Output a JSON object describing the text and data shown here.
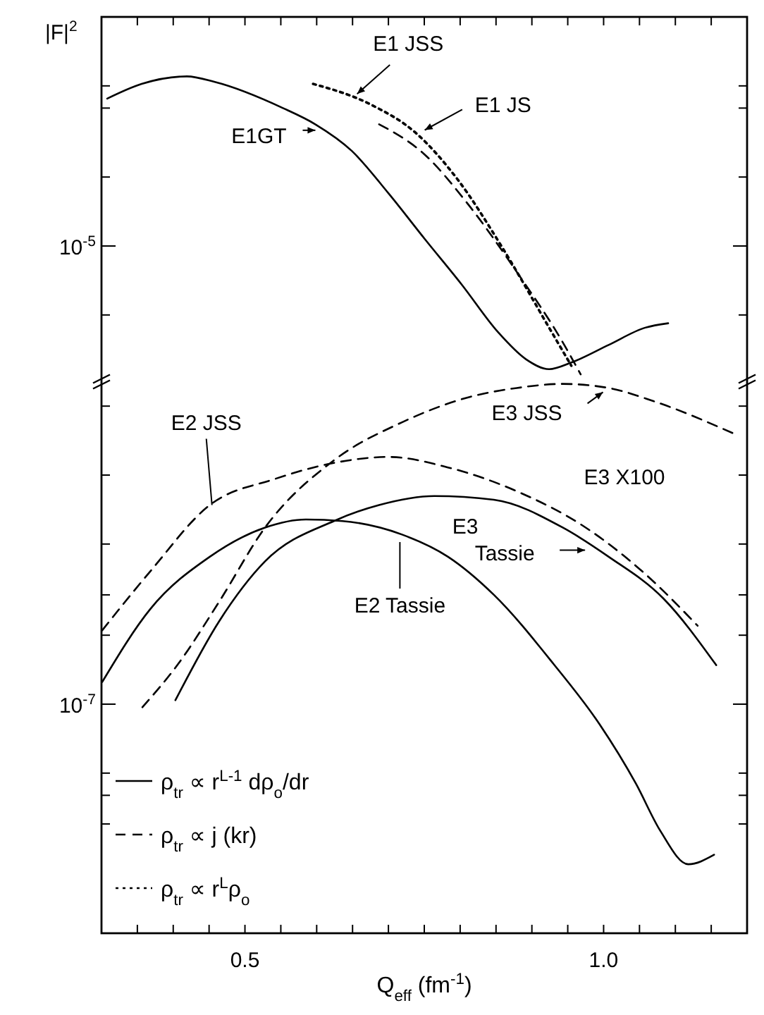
{
  "chart_data": {
    "type": "line",
    "xlabel": "Q$_{eff}$ (fm$^{-1}$)",
    "ylabel": "|F|$^{2}$",
    "log": "y",
    "xlim": [
      0.3,
      1.2
    ],
    "xticks": [
      {
        "value": 0.35,
        "label": null
      },
      {
        "value": 0.4,
        "label": null
      },
      {
        "value": 0.45,
        "label": null
      },
      0.5,
      {
        "value": 0.55,
        "label": null
      },
      {
        "value": 0.6,
        "label": null
      },
      {
        "value": 0.65,
        "label": null
      },
      {
        "value": 0.7,
        "label": null
      },
      {
        "value": 0.75,
        "label": null
      },
      {
        "value": 0.8,
        "label": null
      },
      {
        "value": 0.85,
        "label": null
      },
      {
        "value": 0.9,
        "label": null
      },
      {
        "value": 0.95,
        "label": null
      },
      {
        "value": 1,
        "label": "1.0"
      },
      {
        "value": 1.05,
        "label": null
      },
      {
        "value": 1.1,
        "label": null
      },
      {
        "value": 1.15,
        "label": null
      }
    ],
    "ylim": [
      1e-08,
      0.0001
    ],
    "yticks": [
      {
        "value": 5e-05,
        "label": null
      },
      {
        "value": 4e-05,
        "label": null
      },
      {
        "value": 2e-05,
        "label": null
      },
      {
        "value": 1e-05,
        "label": "10$^{-5}$"
      },
      {
        "value": 5e-06,
        "label": null
      },
      {
        "value": 2e-06,
        "label": null
      },
      {
        "value": 1e-06,
        "label": null
      },
      {
        "value": 5e-07,
        "label": null
      },
      {
        "value": 3e-07,
        "label": null
      },
      {
        "value": 2e-07,
        "label": null
      },
      {
        "value": 1e-07,
        "label": "10$^{-7}$"
      },
      {
        "value": 5e-08,
        "label": null
      },
      {
        "value": 4e-08,
        "label": null
      },
      {
        "value": 3e-08,
        "label": null
      }
    ],
    "legend": "bottom left",
    "series": [
      {
        "name": "ρ$_{tr}$ ∝ r$^{L-1}$ dρ$_{o}$/dr",
        "color": "#000000",
        "line_style": "solid",
        "x": [
          0.308,
          0.356,
          0.419,
          0.458,
          0.553,
          0.598,
          0.649,
          0.7,
          0.751,
          0.802,
          0.853,
          0.892,
          0.924,
          0.955,
          1.007,
          1.058,
          1.09,
          null,
          0.301,
          0.368,
          0.451,
          0.528,
          0.585,
          0.636,
          0.719,
          0.783,
          0.847,
          0.93,
          0.994,
          1.045,
          1.079,
          1.118,
          1.154,
          null,
          0.403,
          0.464,
          0.528,
          0.624,
          0.687,
          0.764,
          0.847,
          0.943,
          1.007,
          1.083,
          1.157
        ],
        "values": [
          4.4e-05,
          5.1e-05,
          5.5e-05,
          5.2e-05,
          4e-05,
          3.4e-05,
          2.6e-05,
          1.7e-05,
          1.07e-05,
          6.8e-06,
          4.2e-06,
          3.2e-06,
          2.9e-06,
          3.1e-06,
          3.7e-06,
          4.4e-06,
          4.6e-06,
          null,
          1.25e-07,
          2.6e-07,
          4.4e-07,
          5.9e-07,
          6.4e-07,
          6.3e-07,
          5.5e-07,
          4.4e-07,
          3e-07,
          1.5e-07,
          8.2e-08,
          4.5e-08,
          2.8e-08,
          2e-08,
          2.2e-08,
          null,
          1.04e-07,
          2.3e-07,
          4.2e-07,
          6.3e-07,
          7.4e-07,
          8.1e-07,
          7.8e-07,
          5.9e-07,
          4.4e-07,
          2.9e-07,
          1.48e-07
        ]
      },
      {
        "name": "ρ$_{tr}$ ∝ j (kr)",
        "color": "#000000",
        "line_style": "dashed",
        "x": [
          0.687,
          0.751,
          0.809,
          0.879,
          0.943,
          0.968,
          null,
          0.301,
          0.368,
          0.451,
          0.541,
          0.624,
          0.7,
          0.783,
          0.879,
          0.975,
          1.058,
          1.131,
          null,
          0.357,
          0.407,
          0.464,
          0.528,
          0.624,
          0.719,
          0.815,
          0.879,
          0.943,
          1.007,
          1.07,
          1.185
        ],
        "values": [
          3.4e-05,
          2.5e-05,
          1.55e-05,
          7.7e-06,
          3.8e-06,
          2.75e-06,
          null,
          2.1e-07,
          3.8e-07,
          7.4e-07,
          9.6e-07,
          1.13e-06,
          1.2e-06,
          1.08e-06,
          8.5e-07,
          5.9e-07,
          3.7e-07,
          2.2e-07,
          null,
          9.7e-08,
          1.5e-07,
          2.8e-07,
          5.9e-07,
          1.16e-06,
          1.7e-06,
          2.2e-06,
          2.4e-06,
          2.5e-06,
          2.4e-06,
          2.1e-06,
          1.5e-06
        ]
      },
      {
        "name": "ρ$_{tr}$ ∝ r$^{L}$ρ$_{o}$",
        "color": "#000000",
        "line_style": "dotted",
        "x": [
          0.595,
          0.675,
          0.739,
          0.796,
          0.86,
          0.924,
          0.955
        ],
        "values": [
          5.1e-05,
          4.15e-05,
          3.1e-05,
          1.96e-05,
          9.7e-06,
          4.4e-06,
          3e-06
        ]
      }
    ],
    "annotations": [
      {
        "text": "E1 JSS",
        "x": 0.649,
        "y": 4.4e-05
      },
      {
        "text": "E1 JS",
        "x": 0.742,
        "y": 3.1e-05
      },
      {
        "text": "E1GT",
        "x": 0.608,
        "y": 3.2e-05
      },
      {
        "text": "E2 JSS",
        "x": 0.454,
        "y": 7.4e-07
      },
      {
        "text": "E3 JSS",
        "x": 1.007,
        "y": 2.4e-06
      },
      "E3 X100",
      {
        "text": "E3 Tassie",
        "x": 0.984,
        "y": 4.7e-07
      },
      {
        "text": "E2 Tassie",
        "x": 0.716,
        "y": 5.1e-07
      }
    ]
  }
}
